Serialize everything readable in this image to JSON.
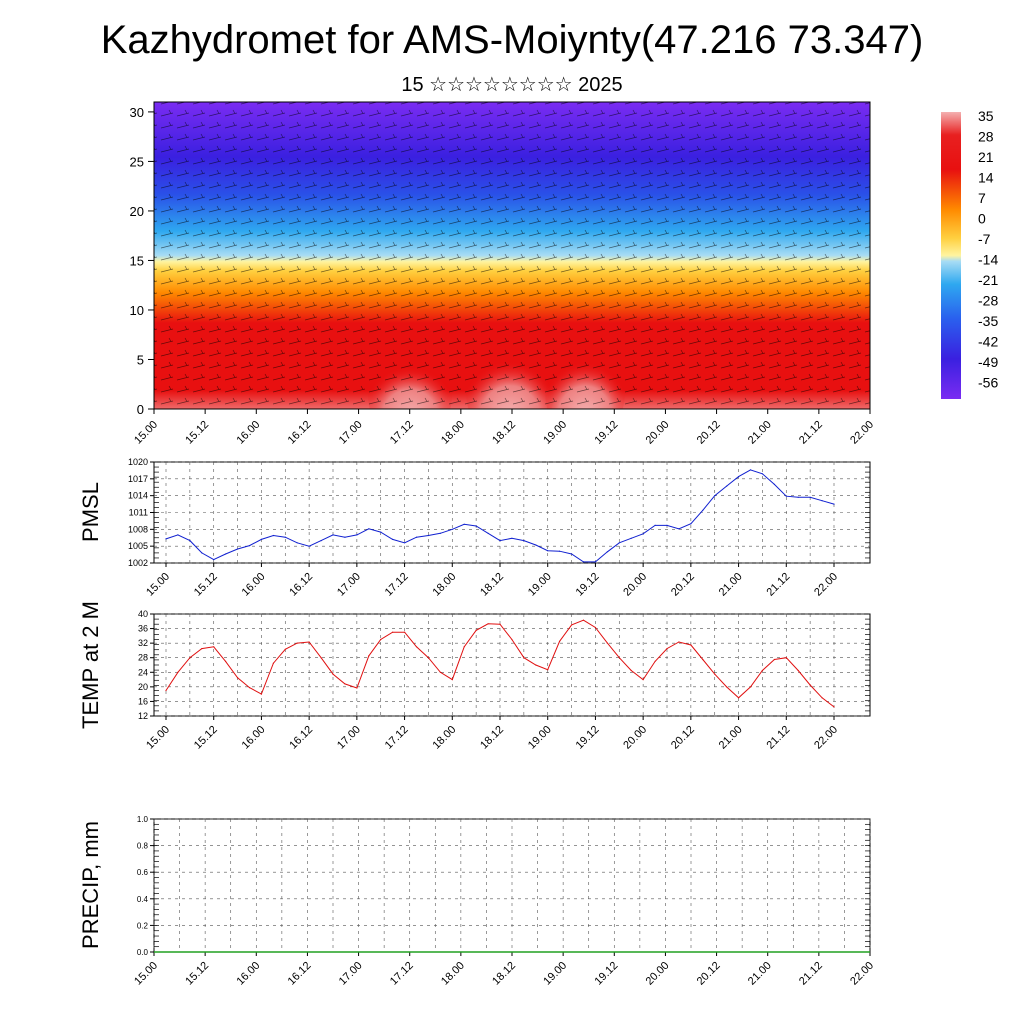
{
  "header": {
    "title": "Kazhydromet for AMS-Moiynty(47.216 73.347)",
    "subtitle": "15 ☆☆☆☆☆☆☆☆ 2025"
  },
  "chart_data": [
    {
      "type": "heatmap",
      "name_note": "",
      "x_tick_labels": [
        "15.00",
        "15.12",
        "16.00",
        "16.12",
        "17.00",
        "17.12",
        "18.00",
        "18.12",
        "19.00",
        "19.12",
        "20.00",
        "20.12",
        "21.00",
        "21.12",
        "22.00"
      ],
      "y_ticks": [
        0,
        5,
        10,
        15,
        20,
        25,
        30
      ],
      "ylim": [
        0,
        31
      ],
      "colorbar_labels": [
        "35",
        "28",
        "21",
        "14",
        "7",
        "0",
        "-7",
        "-14",
        "-21",
        "-28",
        "-35",
        "-42",
        "-49",
        "-56"
      ],
      "colorbar_range": [
        -63,
        42
      ],
      "colors": {
        "cold": "#6a1cf0",
        "cool": "#2f9bf0",
        "mild": "#ffe040",
        "warm": "#ff8a00",
        "hot": "#e81010",
        "hottest": "#f4a8a8"
      }
    },
    {
      "type": "line",
      "ylabel": "PMSL",
      "x_tick_labels": [
        "15.00",
        "15.12",
        "16.00",
        "16.12",
        "17.00",
        "17.12",
        "18.00",
        "18.12",
        "19.00",
        "19.12",
        "20.00",
        "20.12",
        "21.00",
        "21.12",
        "22.00"
      ],
      "y_ticks": [
        1002,
        1005,
        1008,
        1011,
        1014,
        1017,
        1020
      ],
      "ylim": [
        1002,
        1020
      ],
      "x": [
        0,
        3,
        6,
        9,
        12,
        15,
        18,
        21,
        24,
        27,
        30,
        33,
        36,
        39,
        42,
        45,
        48,
        51,
        54,
        57,
        60,
        63,
        66,
        69,
        72,
        75,
        78,
        81,
        84,
        87,
        90,
        93,
        96,
        99,
        102,
        105,
        108,
        111,
        114,
        117,
        120,
        123,
        126,
        129,
        132,
        135,
        138,
        141,
        144,
        147,
        150,
        153,
        156,
        159,
        162,
        165,
        168
      ],
      "values": [
        1006.3,
        1007.0,
        1006.0,
        1003.8,
        1002.6,
        1003.6,
        1004.5,
        1005.1,
        1006.2,
        1006.9,
        1006.6,
        1005.6,
        1005.0,
        1006.0,
        1007.0,
        1006.6,
        1007.0,
        1008.1,
        1007.5,
        1006.2,
        1005.6,
        1006.6,
        1006.9,
        1007.3,
        1008.0,
        1008.9,
        1008.6,
        1007.3,
        1006.0,
        1006.4,
        1006.0,
        1005.2,
        1004.2,
        1004.1,
        1003.6,
        1002.2,
        1002.2,
        1004.0,
        1005.6,
        1006.4,
        1007.2,
        1008.7,
        1008.7,
        1008.1,
        1009.0,
        1011.4,
        1014.0,
        1015.7,
        1017.4,
        1018.6,
        1017.9,
        1016.0,
        1013.9,
        1013.7,
        1013.7,
        1013.1,
        1012.5
      ],
      "series_color": "#1020d0"
    },
    {
      "type": "line",
      "ylabel": "TEMP at 2 M",
      "x_tick_labels": [
        "15.00",
        "15.12",
        "16.00",
        "16.12",
        "17.00",
        "17.12",
        "18.00",
        "18.12",
        "19.00",
        "19.12",
        "20.00",
        "20.12",
        "21.00",
        "21.12",
        "22.00"
      ],
      "y_ticks": [
        12,
        16,
        20,
        24,
        28,
        32,
        36,
        40
      ],
      "ylim": [
        12,
        40
      ],
      "x": [
        0,
        3,
        6,
        9,
        12,
        15,
        18,
        21,
        24,
        27,
        30,
        33,
        36,
        39,
        42,
        45,
        48,
        51,
        54,
        57,
        60,
        63,
        66,
        69,
        72,
        75,
        78,
        81,
        84,
        87,
        90,
        93,
        96,
        99,
        102,
        105,
        108,
        111,
        114,
        117,
        120,
        123,
        126,
        129,
        132,
        135,
        138,
        141,
        144,
        147,
        150,
        153,
        156,
        159,
        162,
        165,
        168
      ],
      "values": [
        19.0,
        24.0,
        28.0,
        30.5,
        31.0,
        27.0,
        22.5,
        19.8,
        18.0,
        26.5,
        30.3,
        32.0,
        32.3,
        28.0,
        23.5,
        20.8,
        19.7,
        28.5,
        33.0,
        35.0,
        35.0,
        31.0,
        28.0,
        24.0,
        22.0,
        31.0,
        35.5,
        37.3,
        37.2,
        33.0,
        28.0,
        26.0,
        24.7,
        32.5,
        37.0,
        38.3,
        36.3,
        32.0,
        28.0,
        24.5,
        22.0,
        27.0,
        30.5,
        32.3,
        31.5,
        27.5,
        23.5,
        20.0,
        17.0,
        20.0,
        24.5,
        27.5,
        28.0,
        24.5,
        20.5,
        17.0,
        14.5
      ],
      "series_color": "#e01010"
    },
    {
      "type": "line",
      "ylabel": "PRECIP, mm",
      "x_tick_labels": [
        "15.00",
        "15.12",
        "16.00",
        "16.12",
        "17.00",
        "17.12",
        "18.00",
        "18.12",
        "19.00",
        "19.12",
        "20.00",
        "20.12",
        "21.00",
        "21.12",
        "22.00"
      ],
      "y_ticks": [
        "0.0",
        "0.2",
        "0.4",
        "0.6",
        "0.8",
        "1.0"
      ],
      "ylim": [
        0,
        1.0
      ],
      "x": [
        0,
        168
      ],
      "values": [
        0,
        0
      ],
      "series_color": "#20a020"
    }
  ]
}
